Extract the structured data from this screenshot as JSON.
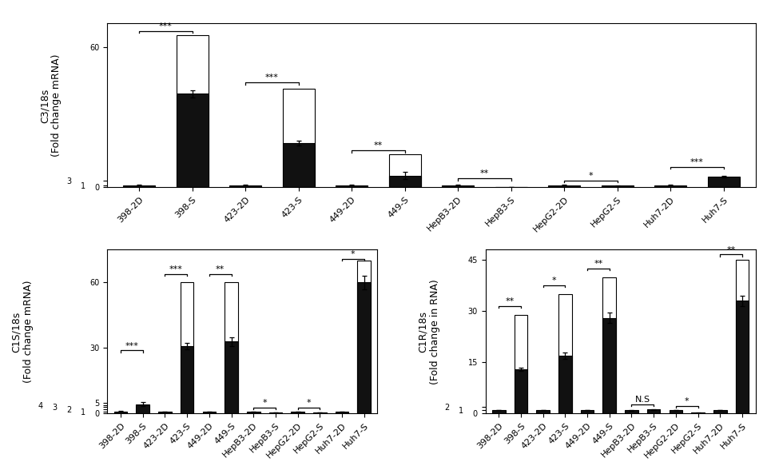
{
  "chart_data": [
    {
      "type": "bar",
      "ylabel": "C3/18s\n(Fold change mRNA)",
      "categories": [
        "398-2D",
        "398-S",
        "423-2D",
        "423-S",
        "449-2D",
        "449-S",
        "HepB3-2D",
        "HepB3-S",
        "HepG2-2D",
        "HepG2-S",
        "Huh7-2D",
        "Huh7-S"
      ],
      "series": [
        {
          "color": "white",
          "values": [
            0,
            65,
            0,
            42,
            0,
            14,
            0,
            0,
            0,
            0,
            0,
            0
          ]
        },
        {
          "color": "#111111",
          "values": [
            1.0,
            40.0,
            1.0,
            19.0,
            1.0,
            5.0,
            1.0,
            0.1,
            1.0,
            0.75,
            1.0,
            4.5
          ],
          "errors": [
            0.05,
            1.5,
            0.05,
            1.0,
            0.05,
            1.5,
            0.05,
            0.02,
            0.05,
            0.1,
            0.05,
            0.4
          ]
        }
      ],
      "ylim": [
        0,
        70
      ],
      "yticks": [
        0,
        1,
        3,
        60
      ],
      "annotations": [
        {
          "from": "398-2D",
          "to": "398-S",
          "y": 66,
          "text": "***"
        },
        {
          "from": "423-2D",
          "to": "423-S",
          "y": 44,
          "text": "***"
        },
        {
          "from": "449-2D",
          "to": "449-S",
          "y": 15,
          "text": "**"
        },
        {
          "from": "HepB3-2D",
          "to": "HepB3-S",
          "y": 3.0,
          "text": "**"
        },
        {
          "from": "HepG2-2D",
          "to": "HepG2-S",
          "y": 2.2,
          "text": "*"
        },
        {
          "from": "Huh7-2D",
          "to": "Huh7-S",
          "y": 8.0,
          "text": "***"
        }
      ]
    },
    {
      "type": "bar",
      "ylabel": "C1S/18s\n(Fold change mRNA)",
      "categories": [
        "398-2D",
        "398-S",
        "423-2D",
        "423-S",
        "449-2D",
        "449-S",
        "HepB3-2D",
        "HepB3-S",
        "HepG2-2D",
        "HepG2-S",
        "Huh7-2D",
        "Huh7-S"
      ],
      "series": [
        {
          "color": "white",
          "values": [
            0,
            0,
            0,
            60,
            0,
            60,
            0,
            0,
            0,
            0,
            0,
            70
          ]
        },
        {
          "color": "#111111",
          "values": [
            1.0,
            4.3,
            1.0,
            31.0,
            1.0,
            33.0,
            1.0,
            0.55,
            1.0,
            0.5,
            1.0,
            60.0
          ],
          "errors": [
            0.1,
            0.8,
            0.05,
            1.5,
            0.05,
            2.0,
            0.05,
            0.05,
            0.05,
            0.05,
            0.05,
            3.0
          ]
        }
      ],
      "ylim": [
        0,
        75
      ],
      "yticks": [
        0,
        1,
        2,
        3,
        4,
        5,
        30,
        60
      ],
      "annotations": [
        {
          "from": "398-2D",
          "to": "398-S",
          "y": 28,
          "text": "***"
        },
        {
          "from": "423-2D",
          "to": "423-S",
          "y": 63,
          "text": "***"
        },
        {
          "from": "449-2D",
          "to": "449-S",
          "y": 63,
          "text": "**"
        },
        {
          "from": "HepB3-2D",
          "to": "HepB3-S",
          "y": 2.0,
          "text": "*"
        },
        {
          "from": "HepG2-2D",
          "to": "HepG2-S",
          "y": 2.0,
          "text": "*"
        },
        {
          "from": "Huh7-2D",
          "to": "Huh7-S",
          "y": 70,
          "text": "*"
        }
      ]
    },
    {
      "type": "bar",
      "ylabel": "C1R/18s\n(Fold change in RNA)",
      "categories": [
        "398-2D",
        "398-S",
        "423-2D",
        "423-S",
        "449-2D",
        "449-S",
        "HepB3-2D",
        "HepB3-S",
        "HepG2-2D",
        "HepG2-S",
        "Huh7-2D",
        "Huh7-S"
      ],
      "series": [
        {
          "color": "white",
          "values": [
            0,
            29,
            0,
            35,
            0,
            40,
            0,
            0,
            0,
            0,
            0,
            45
          ]
        },
        {
          "color": "#111111",
          "values": [
            1.05,
            13.0,
            1.0,
            17.0,
            1.05,
            28.0,
            1.0,
            1.2,
            1.0,
            0.25,
            1.0,
            33.0
          ],
          "errors": [
            0.1,
            0.5,
            0.05,
            1.0,
            0.1,
            1.5,
            0.1,
            0.15,
            0.05,
            0.05,
            0.05,
            1.5
          ]
        }
      ],
      "ylim": [
        0,
        48
      ],
      "yticks": [
        0,
        1,
        2,
        15,
        30,
        45
      ],
      "annotations": [
        {
          "from": "398-2D",
          "to": "398-S",
          "y": 31,
          "text": "**"
        },
        {
          "from": "423-2D",
          "to": "423-S",
          "y": 37,
          "text": "*"
        },
        {
          "from": "449-2D",
          "to": "449-S",
          "y": 42,
          "text": "**"
        },
        {
          "from": "HepB3-2D",
          "to": "HepB3-S",
          "y": 2.2,
          "text": "N.S"
        },
        {
          "from": "HepG2-2D",
          "to": "HepG2-S",
          "y": 1.7,
          "text": "*"
        },
        {
          "from": "Huh7-2D",
          "to": "Huh7-S",
          "y": 46,
          "text": "**"
        }
      ]
    }
  ]
}
